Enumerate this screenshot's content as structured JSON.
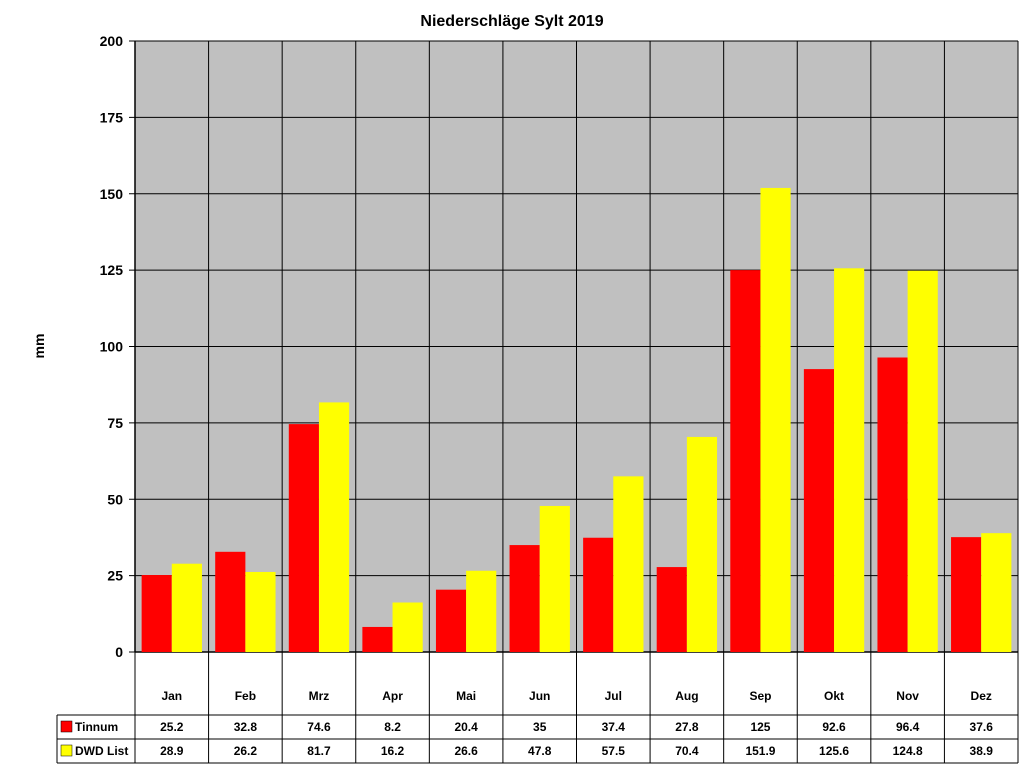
{
  "chart_data": {
    "type": "bar",
    "title": "Niederschläge Sylt 2019",
    "ylabel": "mm",
    "xlabel": "",
    "ylim": [
      0,
      200
    ],
    "yticks": [
      0,
      25,
      50,
      75,
      100,
      125,
      150,
      175,
      200
    ],
    "grid": true,
    "legend": "data-table-left",
    "categories": [
      "Jan",
      "Feb",
      "Mrz",
      "Apr",
      "Mai",
      "Jun",
      "Jul",
      "Aug",
      "Sep",
      "Okt",
      "Nov",
      "Dez"
    ],
    "series": [
      {
        "name": "Tinnum",
        "color": "#ff0000",
        "values": [
          25.2,
          32.8,
          74.6,
          8.2,
          20.4,
          35,
          37.4,
          27.8,
          125,
          92.6,
          96.4,
          37.6
        ]
      },
      {
        "name": "DWD List",
        "color": "#ffff00",
        "values": [
          28.9,
          26.2,
          81.7,
          16.2,
          26.6,
          47.8,
          57.5,
          70.4,
          151.9,
          125.6,
          124.8,
          38.9
        ]
      }
    ],
    "plot_background": "#c0c0c0"
  }
}
